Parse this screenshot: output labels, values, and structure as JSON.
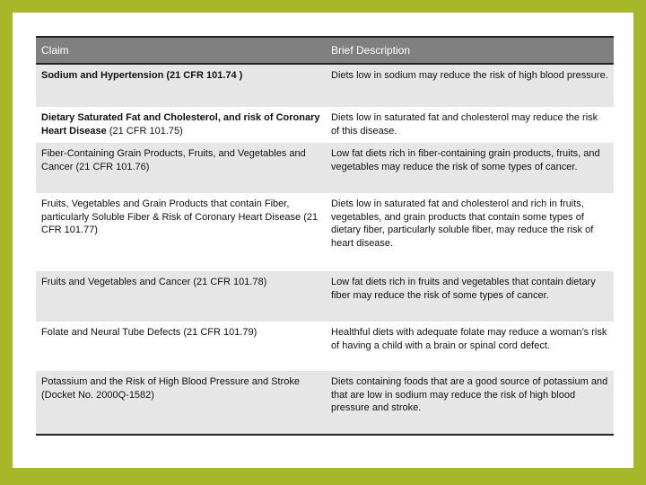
{
  "table": {
    "headers": [
      "Claim",
      "Brief Description"
    ],
    "rows": [
      {
        "claim_bold": "Sodium and Hypertension (21 CFR 101.74 )",
        "claim": "",
        "description": "Diets low in sodium may reduce the risk of high blood pressure."
      },
      {
        "claim_bold": "Dietary Saturated Fat and Cholesterol, and risk of Coronary Heart Disease",
        "claim": " (21 CFR 101.75)",
        "description": "Diets low in saturated fat and cholesterol may reduce the risk of this disease."
      },
      {
        "claim_bold": "",
        "claim": "Fiber-Containing Grain Products, Fruits, and Vegetables and Cancer (21 CFR 101.76)",
        "description": "Low fat diets rich in fiber-containing grain products, fruits, and vegetables may reduce the risk of some types of cancer."
      },
      {
        "claim_bold": "",
        "claim": "Fruits, Vegetables and Grain Products that contain Fiber, particularly Soluble Fiber & Risk of Coronary Heart Disease (21 CFR 101.77)",
        "description": "Diets low in saturated fat and cholesterol and rich in fruits, vegetables, and grain products that contain some types of dietary fiber, particularly soluble fiber, may reduce the risk of heart disease."
      },
      {
        "claim_bold": "",
        "claim": "Fruits and Vegetables and Cancer (21 CFR 101.78)",
        "description": "Low fat diets rich in fruits and vegetables that contain dietary fiber may reduce the risk of some types of cancer."
      },
      {
        "claim_bold": "",
        "claim": "Folate and Neural Tube Defects (21 CFR 101.79)",
        "description": "Healthful diets with adequate folate may reduce a woman’s risk of having a child with a brain or spinal cord defect."
      },
      {
        "claim_bold": "",
        "claim": "Potassium and the Risk of High Blood Pressure and Stroke (Docket No. 2000Q-1582)",
        "description": "Diets containing foods that are a good source of potassium and that are low in sodium may reduce the risk of high blood pressure and stroke."
      }
    ]
  },
  "colors": {
    "border": "#a6b82a",
    "header_bg": "#808080",
    "row_alt": "#e6e6e6"
  }
}
